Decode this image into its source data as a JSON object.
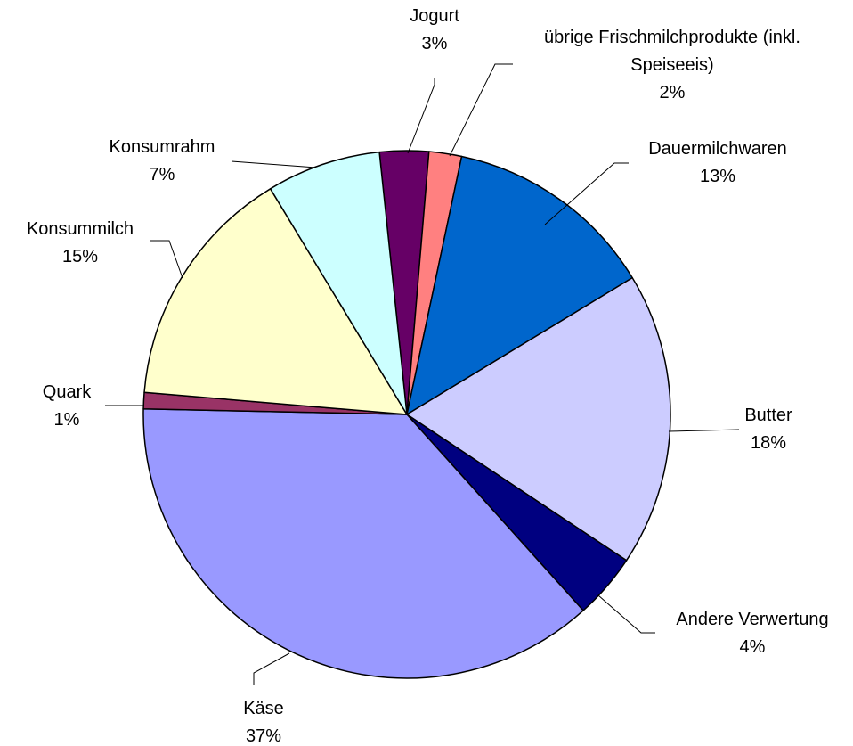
{
  "chart_data": {
    "type": "pie",
    "categories": [
      "Jogurt",
      "übrige Frischmilchprodukte (inkl. Speiseeis)",
      "Dauermilchwaren",
      "Butter",
      "Andere Verwertung",
      "Käse",
      "Quark",
      "Konsummilch",
      "Konsumrahm"
    ],
    "values": [
      3,
      2,
      13,
      18,
      4,
      37,
      1,
      15,
      7
    ],
    "value_labels": [
      "3%",
      "2%",
      "13%",
      "18%",
      "4%",
      "37%",
      "1%",
      "15%",
      "7%"
    ],
    "colors": [
      "#660066",
      "#ff8080",
      "#0066cc",
      "#ccccff",
      "#000080",
      "#9999ff",
      "#993366",
      "#ffffcc",
      "#ccffff"
    ]
  }
}
